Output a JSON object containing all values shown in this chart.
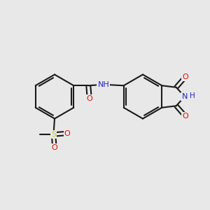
{
  "background_color": "#e8e8e8",
  "bond_color": "#1a1a1a",
  "bond_width": 1.5,
  "dbo": 0.12,
  "atom_colors": {
    "N": "#2222cc",
    "O": "#dd1100",
    "S": "#cccc00",
    "H": "#2222cc"
  },
  "font_size": 8.0,
  "fig_size": [
    3.0,
    3.0
  ],
  "dpi": 100,
  "xlim": [
    -0.5,
    9.5
  ],
  "ylim": [
    -0.2,
    7.2
  ]
}
